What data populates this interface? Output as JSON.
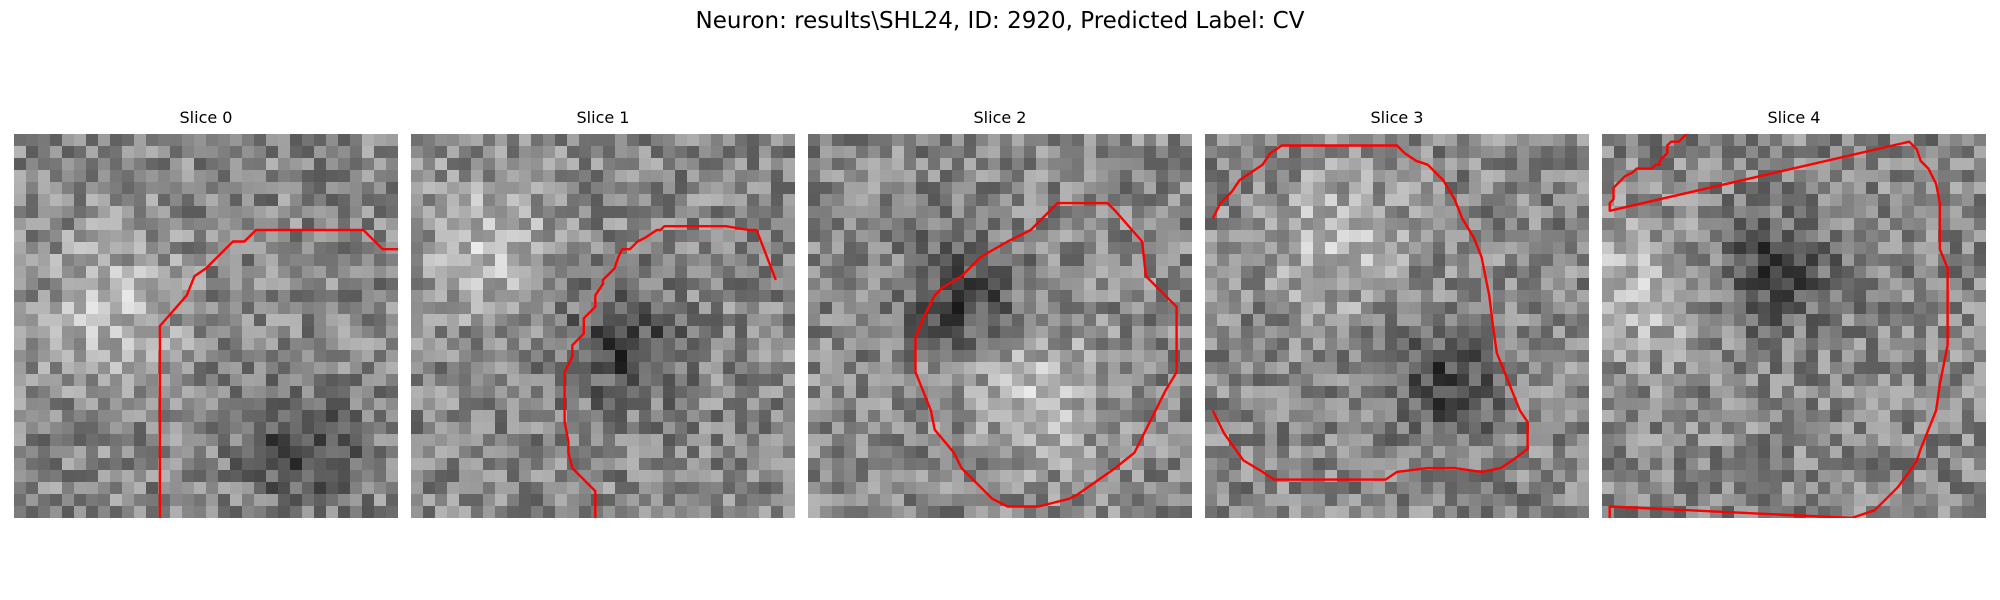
{
  "figure": {
    "title": "Neuron: results\\SHL24, ID: 2920, Predicted Label: CV"
  },
  "colors": {
    "contour": "#ff0000",
    "background": "#ffffff"
  },
  "panels": [
    {
      "title": "Slice 0",
      "seed": 11,
      "dark_center": [
        0.75,
        0.82
      ],
      "bright_center": [
        0.25,
        0.45
      ],
      "contour": [
        [
          38,
          100
        ],
        [
          38,
          50
        ],
        [
          45,
          42
        ],
        [
          47,
          37
        ],
        [
          50,
          35
        ],
        [
          57,
          28
        ],
        [
          60,
          28
        ],
        [
          63,
          25
        ],
        [
          91,
          25
        ],
        [
          96,
          30
        ],
        [
          100,
          30
        ]
      ]
    },
    {
      "title": "Slice 1",
      "seed": 23,
      "dark_center": [
        0.55,
        0.55
      ],
      "bright_center": [
        0.2,
        0.3
      ],
      "contour": [
        [
          48,
          100
        ],
        [
          48,
          93
        ],
        [
          42,
          87
        ],
        [
          41,
          83
        ],
        [
          41,
          80
        ],
        [
          40,
          75
        ],
        [
          40,
          62
        ],
        [
          42,
          58
        ],
        [
          42,
          55
        ],
        [
          45,
          52
        ],
        [
          45,
          48
        ],
        [
          48,
          45
        ],
        [
          48,
          42
        ],
        [
          50,
          39
        ],
        [
          50,
          38
        ],
        [
          53,
          35
        ],
        [
          54,
          32
        ],
        [
          55,
          30
        ],
        [
          57,
          30
        ],
        [
          59,
          28
        ],
        [
          61,
          27
        ],
        [
          64,
          25
        ],
        [
          65,
          25
        ],
        [
          66,
          24
        ],
        [
          82,
          24
        ],
        [
          88,
          25
        ],
        [
          90,
          25
        ],
        [
          95,
          38
        ]
      ]
    },
    {
      "title": "Slice 2",
      "seed": 37,
      "dark_center": [
        0.4,
        0.42
      ],
      "bright_center": [
        0.6,
        0.68
      ],
      "contour": [
        [
          42,
          35
        ],
        [
          45,
          32
        ],
        [
          52,
          28
        ],
        [
          58,
          25
        ],
        [
          61,
          22
        ],
        [
          65,
          18
        ],
        [
          78,
          18
        ],
        [
          80,
          20
        ],
        [
          87,
          28
        ],
        [
          88,
          37
        ],
        [
          96,
          45
        ],
        [
          96,
          55
        ],
        [
          96,
          62
        ],
        [
          93,
          67
        ],
        [
          85,
          83
        ],
        [
          80,
          87
        ],
        [
          70,
          94
        ],
        [
          68,
          95
        ],
        [
          60,
          97
        ],
        [
          55,
          97
        ],
        [
          52,
          97
        ],
        [
          48,
          95
        ],
        [
          40,
          87
        ],
        [
          38,
          83
        ],
        [
          33,
          77
        ],
        [
          32,
          72
        ],
        [
          30,
          67
        ],
        [
          28,
          62
        ],
        [
          28,
          53
        ],
        [
          30,
          48
        ],
        [
          33,
          42
        ],
        [
          35,
          40
        ],
        [
          40,
          37
        ],
        [
          42,
          35
        ]
      ]
    },
    {
      "title": "Slice 3",
      "seed": 51,
      "dark_center": [
        0.62,
        0.65
      ],
      "bright_center": [
        0.35,
        0.28
      ],
      "contour": [
        [
          2,
          22
        ],
        [
          4,
          18
        ],
        [
          7,
          15
        ],
        [
          9,
          12
        ],
        [
          12,
          10
        ],
        [
          15,
          8
        ],
        [
          17,
          5
        ],
        [
          20,
          3
        ],
        [
          25,
          3
        ],
        [
          30,
          3
        ],
        [
          40,
          3
        ],
        [
          50,
          3
        ],
        [
          52,
          5
        ],
        [
          55,
          7
        ],
        [
          58,
          8
        ],
        [
          62,
          12
        ],
        [
          65,
          17
        ],
        [
          67,
          22
        ],
        [
          70,
          27
        ],
        [
          72,
          32
        ],
        [
          74,
          42
        ],
        [
          75,
          50
        ],
        [
          76,
          57
        ],
        [
          78,
          62
        ],
        [
          80,
          67
        ],
        [
          82,
          72
        ],
        [
          84,
          75
        ],
        [
          84,
          78
        ],
        [
          84,
          82
        ],
        [
          80,
          85
        ],
        [
          77,
          87
        ],
        [
          72,
          88
        ],
        [
          65,
          87
        ],
        [
          58,
          87
        ],
        [
          50,
          88
        ],
        [
          47,
          90
        ],
        [
          45,
          90
        ],
        [
          43,
          90
        ],
        [
          40,
          90
        ],
        [
          35,
          90
        ],
        [
          25,
          90
        ],
        [
          18,
          90
        ],
        [
          15,
          88
        ],
        [
          10,
          85
        ],
        [
          5,
          78
        ],
        [
          2,
          72
        ]
      ]
    },
    {
      "title": "Slice 4",
      "seed": 67,
      "dark_center": [
        0.45,
        0.35
      ],
      "bright_center": [
        0.1,
        0.4
      ],
      "contour": [
        [
          22,
          0
        ],
        [
          20,
          2
        ],
        [
          18,
          2
        ],
        [
          17,
          3
        ],
        [
          17,
          5
        ],
        [
          16,
          6
        ],
        [
          15,
          7
        ],
        [
          15,
          8
        ],
        [
          14,
          8
        ],
        [
          13,
          9
        ],
        [
          9,
          9
        ],
        [
          8,
          10
        ],
        [
          6,
          11
        ],
        [
          5,
          12
        ],
        [
          4,
          13
        ],
        [
          3,
          14
        ],
        [
          3,
          16
        ],
        [
          3,
          17
        ],
        [
          2,
          18
        ],
        [
          2,
          20
        ],
        [
          80,
          2
        ],
        [
          82,
          4
        ],
        [
          83,
          7
        ],
        [
          85,
          9
        ],
        [
          87,
          13
        ],
        [
          88,
          18
        ],
        [
          88,
          23
        ],
        [
          88,
          30
        ],
        [
          90,
          35
        ],
        [
          90,
          40
        ],
        [
          90,
          48
        ],
        [
          90,
          55
        ],
        [
          89,
          60
        ],
        [
          88,
          65
        ],
        [
          87,
          72
        ],
        [
          85,
          77
        ],
        [
          83,
          82
        ],
        [
          82,
          85
        ],
        [
          80,
          88
        ],
        [
          77,
          92
        ],
        [
          74,
          95
        ],
        [
          71,
          98
        ],
        [
          65,
          100
        ],
        [
          2,
          97
        ],
        [
          2,
          100
        ]
      ]
    }
  ]
}
